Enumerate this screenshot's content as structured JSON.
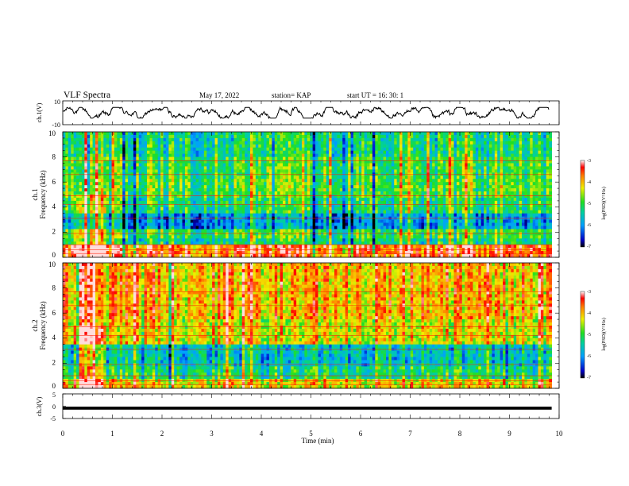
{
  "header": {
    "title": "VLF Spectra",
    "date": "May 17, 2022",
    "station": "station= KAP",
    "start": "start  UT  =    16: 30: 1"
  },
  "chart_data": [
    {
      "type": "line",
      "panel": "ch1-waveform",
      "ylabel": "ch.1(V)",
      "ylim": [
        -10,
        10
      ],
      "ytick_labels": [
        "10",
        "-10"
      ],
      "xlim": [
        0,
        10
      ],
      "description_values": "waveform oscillating roughly between -4 and +4 V over 0 to 9.8 min"
    },
    {
      "type": "heatmap",
      "panel": "ch1-spectrogram",
      "ylabel_top": "ch.1",
      "ylabel": "Frequency (kHz)",
      "ylim": [
        0,
        10
      ],
      "ytick_labels": [
        "0",
        "2",
        "4",
        "6",
        "8",
        "10"
      ],
      "xlim": [
        0,
        9.85
      ],
      "colorbar": {
        "label": "log(PSD)(V²/Hz)",
        "range": [
          -7,
          -3
        ],
        "tick_labels": [
          "-3",
          "-4",
          "-5",
          "-6",
          "-7"
        ]
      },
      "bands": [
        {
          "f0": 0.0,
          "f1": 0.9,
          "level": -3.6
        },
        {
          "f0": 0.9,
          "f1": 1.6,
          "level": -5.3
        },
        {
          "f0": 1.6,
          "f1": 2.3,
          "level": -5.0
        },
        {
          "f0": 2.3,
          "f1": 3.6,
          "level": -6.0
        },
        {
          "f0": 3.6,
          "f1": 4.8,
          "level": -5.2
        },
        {
          "f0": 4.8,
          "f1": 6.2,
          "level": -4.9
        },
        {
          "f0": 6.2,
          "f1": 8.0,
          "level": -5.0
        },
        {
          "f0": 8.0,
          "f1": 10.0,
          "level": -5.3
        }
      ],
      "burst_interval_min": [
        0.2,
        0.85
      ]
    },
    {
      "type": "heatmap",
      "panel": "ch2-spectrogram",
      "ylabel_top": "ch.2",
      "ylabel": "Frequency (kHz)",
      "ylim": [
        0,
        10
      ],
      "ytick_labels": [
        "0",
        "2",
        "4",
        "6",
        "8",
        "10"
      ],
      "xlim": [
        0,
        9.85
      ],
      "colorbar": {
        "label": "log(PSD)(V²/Hz)",
        "range": [
          -7,
          -3
        ],
        "tick_labels": [
          "-3",
          "-4",
          "-5",
          "-6",
          "-7"
        ]
      },
      "bands": [
        {
          "f0": 0.0,
          "f1": 0.8,
          "level": -4.2
        },
        {
          "f0": 0.8,
          "f1": 1.8,
          "level": -5.2
        },
        {
          "f0": 1.8,
          "f1": 3.6,
          "level": -5.6
        },
        {
          "f0": 3.6,
          "f1": 5.5,
          "level": -4.3
        },
        {
          "f0": 5.5,
          "f1": 10.0,
          "level": -4.0
        }
      ],
      "burst_interval_min": [
        0.2,
        0.85
      ]
    },
    {
      "type": "line",
      "panel": "ch3-waveform",
      "ylabel": "ch.3(V)",
      "ylim": [
        -5,
        5
      ],
      "ytick_labels": [
        "5",
        "0",
        "-5"
      ],
      "xlabel": "Time  (min)",
      "xlim": [
        0,
        10
      ],
      "xtick_labels": [
        "0",
        "1",
        "2",
        "3",
        "4",
        "5",
        "6",
        "7",
        "8",
        "9",
        "10"
      ],
      "band_center_v": -0.8,
      "band_halfwidth_v": 0.6,
      "data_end_min": 9.85
    }
  ]
}
